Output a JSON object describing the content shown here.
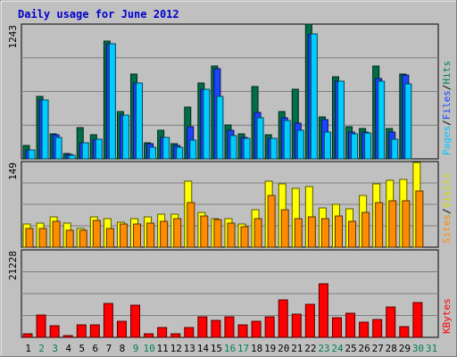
{
  "chart_data": {
    "type": "bar",
    "title": "Daily usage for June 2012",
    "colors": {
      "hits": "#006f48",
      "files": "#1b44ff",
      "pages": "#00ccff",
      "visits": "#ffff00",
      "sites": "#ff8c00",
      "kbytes": "#ff0000",
      "panel_bg": "#c0c0c0",
      "page_bg": "#c0c0c0",
      "title": "#0000cc",
      "weekend_label": "#00805a"
    },
    "days": [
      "1",
      "2",
      "3",
      "4",
      "5",
      "6",
      "7",
      "8",
      "9",
      "10",
      "11",
      "12",
      "13",
      "14",
      "15",
      "16",
      "17",
      "18",
      "19",
      "20",
      "21",
      "22",
      "23",
      "24",
      "25",
      "26",
      "27",
      "28",
      "29",
      "30",
      "31"
    ],
    "weekend_days": [
      2,
      3,
      9,
      10,
      16,
      17,
      23,
      24,
      30,
      31
    ],
    "panels": [
      {
        "id": "hits-files-pages",
        "ymax_label": "1243",
        "ymax": 1243,
        "legend": [
          {
            "text": "Hits",
            "color": "#00805a"
          },
          {
            "text": "Files",
            "color": "#1b44ff"
          },
          {
            "text": "Pages",
            "color": "#00c8ff"
          }
        ],
        "series": [
          {
            "name": "Hits",
            "key": "hits",
            "values": [
              120,
              580,
              230,
              50,
              290,
              220,
              1090,
              440,
              780,
              150,
              260,
              140,
              480,
              700,
              860,
              310,
              230,
              670,
              220,
              440,
              640,
              1240,
              390,
              760,
              300,
              280,
              860,
              280,
              780,
              0,
              0
            ]
          },
          {
            "name": "Files",
            "key": "files",
            "values": [
              80,
              540,
              220,
              40,
              150,
              180,
              1060,
              400,
              700,
              140,
              200,
              120,
              300,
              640,
              830,
              260,
              200,
              430,
              190,
              380,
              330,
              1150,
              360,
              720,
              250,
              250,
              740,
              250,
              770,
              0,
              0
            ]
          },
          {
            "name": "Pages",
            "key": "pages",
            "values": [
              80,
              540,
              200,
              30,
              150,
              180,
              1060,
              400,
              700,
              110,
              200,
              110,
              170,
              640,
              580,
              210,
              190,
              380,
              190,
              350,
              260,
              1150,
              250,
              720,
              230,
              240,
              720,
              180,
              690,
              0,
              0
            ]
          }
        ]
      },
      {
        "id": "visits-sites",
        "ymax_label": "149",
        "ymax": 149,
        "legend": [
          {
            "text": "Visits",
            "color": "#d8d800"
          },
          {
            "text": "Sites",
            "color": "#ff8c00"
          }
        ],
        "series": [
          {
            "name": "Visits",
            "key": "visits",
            "values": [
              40,
              42,
              52,
              42,
              32,
              52,
              49,
              44,
              50,
              52,
              57,
              58,
              115,
              60,
              50,
              50,
              40,
              65,
              115,
              110,
              103,
              106,
              68,
              75,
              66,
              90,
              110,
              116,
              118,
              148,
              0
            ]
          },
          {
            "name": "Sites",
            "key": "sites",
            "values": [
              32,
              33,
              45,
              30,
              30,
              47,
              33,
              40,
              40,
              42,
              45,
              50,
              78,
              55,
              48,
              42,
              35,
              50,
              90,
              65,
              50,
              53,
              50,
              55,
              45,
              60,
              78,
              80,
              80,
              98,
              0
            ]
          }
        ]
      },
      {
        "id": "kbytes",
        "ymax_label": "21228",
        "ymax": 21228,
        "legend": [
          {
            "text": "KBytes",
            "color": "#ff0000"
          }
        ],
        "series": [
          {
            "name": "KBytes",
            "key": "kbytes",
            "values": [
              900,
              5500,
              2800,
              500,
              3000,
              3000,
              8300,
              3800,
              7900,
              800,
              2400,
              800,
              2400,
              5000,
              4100,
              5000,
              3000,
              3800,
              4900,
              9000,
              5600,
              8100,
              13000,
              4700,
              5900,
              3700,
              4300,
              7300,
              2700,
              8500,
              0
            ]
          }
        ]
      }
    ]
  }
}
